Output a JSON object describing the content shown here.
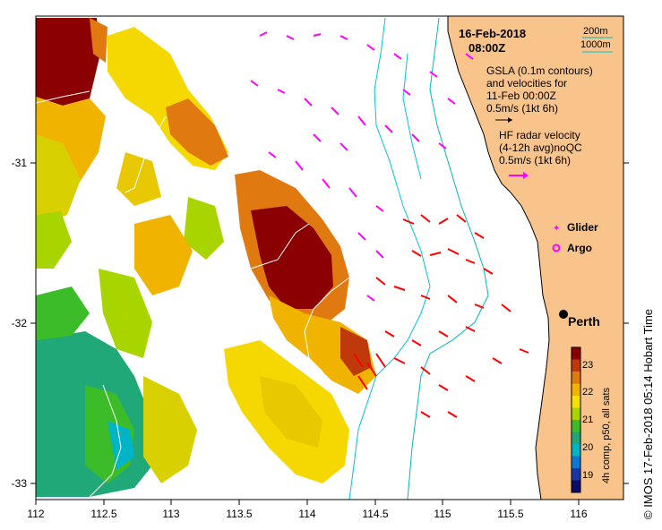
{
  "header": {
    "date": "16-Feb-2018",
    "time": "08:00Z"
  },
  "contour_legend": {
    "label_200m": "200m",
    "label_1000m": "1000m",
    "color_200m": "#00b8b8",
    "color_1000m": "#00c4d8"
  },
  "gsla_legend": {
    "line1": "GSLA (0.1m contours)",
    "line2": "and velocities for",
    "line3": "11-Feb 00:00Z",
    "line4": "0.5m/s (1kt 6h)",
    "arrow_color": "#000000"
  },
  "hf_legend": {
    "line1": "HF radar velocity",
    "line2": "(4-12h avg)noQC",
    "line3": "0.5m/s (1kt 6h)",
    "arrow_color": "#ff00ff"
  },
  "symbols": {
    "glider_label": "Glider",
    "argo_label": "Argo",
    "glider_color": "#ff00ff",
    "argo_color": "#ff00ff"
  },
  "place": {
    "city": "Perth"
  },
  "axes": {
    "x_ticks": [
      "112",
      "112.5",
      "113",
      "113.5",
      "114",
      "114.5",
      "115",
      "115.5",
      "116"
    ],
    "y_ticks": [
      "-31",
      "-32",
      "-33"
    ]
  },
  "colorbar": {
    "title": "4h comp, p50, all sats",
    "ticks": [
      "23",
      "22",
      "21",
      "20",
      "19"
    ],
    "colors": [
      "#8b0000",
      "#c0390b",
      "#e07a10",
      "#f0b400",
      "#f5e000",
      "#a8d400",
      "#3cbc28",
      "#20a878",
      "#00b4c8",
      "#0a78d8",
      "#1836a8",
      "#0c0a6a"
    ]
  },
  "footer": {
    "credit": "© IMOS 17-Feb-2018 05:14 Hobart Time"
  },
  "colors": {
    "land": "#f9c48c",
    "ocean": "#ffffff",
    "hf_arrows": "#ff0000",
    "gsla_arrows": "#ff00ff"
  }
}
